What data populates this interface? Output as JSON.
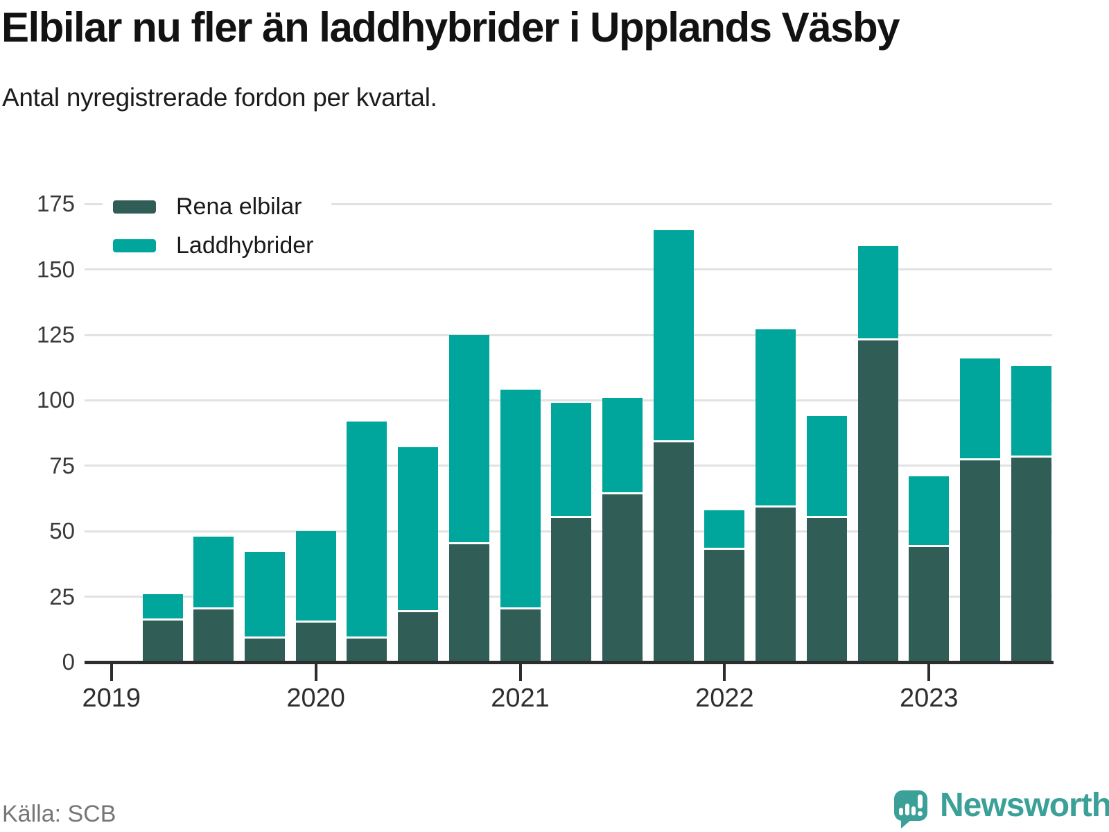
{
  "header": {
    "title": "Elbilar nu fler än laddhybrider i Upplands Väsby",
    "subtitle": "Antal nyregistrerade fordon per kvartal."
  },
  "legend": [
    {
      "label": "Rena elbilar",
      "color": "#305d55"
    },
    {
      "label": "Laddhybrider",
      "color": "#00a69b"
    }
  ],
  "footer": {
    "source": "Källa: SCB",
    "brand": "Newsworthy"
  },
  "colors": {
    "electric": "#305d55",
    "hybrid": "#00a69b",
    "gridline": "#e3e2e2",
    "axis": "#2d2d2d",
    "brand_teal": "#3aa098"
  },
  "chart_data": {
    "type": "bar",
    "stacked": true,
    "title": "Elbilar nu fler än laddhybrider i Upplands Väsby",
    "subtitle": "Antal nyregistrerade fordon per kvartal.",
    "xlabel": "",
    "ylabel": "",
    "categories": [
      "2019 K2",
      "2019 K3",
      "2019 K4",
      "2020 K1",
      "2020 K2",
      "2020 K3",
      "2020 K4",
      "2021 K1",
      "2021 K2",
      "2021 K3",
      "2021 K4",
      "2022 K1",
      "2022 K2",
      "2022 K3",
      "2022 K4",
      "2023 K1",
      "2023 K2",
      "2023 K3"
    ],
    "series": [
      {
        "name": "Rena elbilar",
        "color": "#305d55",
        "values": [
          16,
          20,
          9,
          15,
          9,
          19,
          45,
          20,
          55,
          64,
          84,
          43,
          59,
          55,
          123,
          44,
          77,
          78
        ]
      },
      {
        "name": "Laddhybrider",
        "color": "#00a69b",
        "values": [
          10,
          28,
          33,
          35,
          83,
          63,
          80,
          84,
          44,
          37,
          81,
          15,
          68,
          39,
          36,
          27,
          39,
          35
        ]
      }
    ],
    "stack_totals": [
      26,
      48,
      42,
      50,
      92,
      82,
      125,
      104,
      99,
      101,
      165,
      58,
      127,
      94,
      159,
      71,
      116,
      113
    ],
    "x_tick_labels": [
      "2019",
      "2020",
      "2021",
      "2022",
      "2023"
    ],
    "y_ticks": [
      0,
      25,
      50,
      75,
      100,
      125,
      150,
      175
    ],
    "ylim": [
      0,
      185
    ],
    "grid": "horizontal",
    "legend_position": "top-left"
  }
}
